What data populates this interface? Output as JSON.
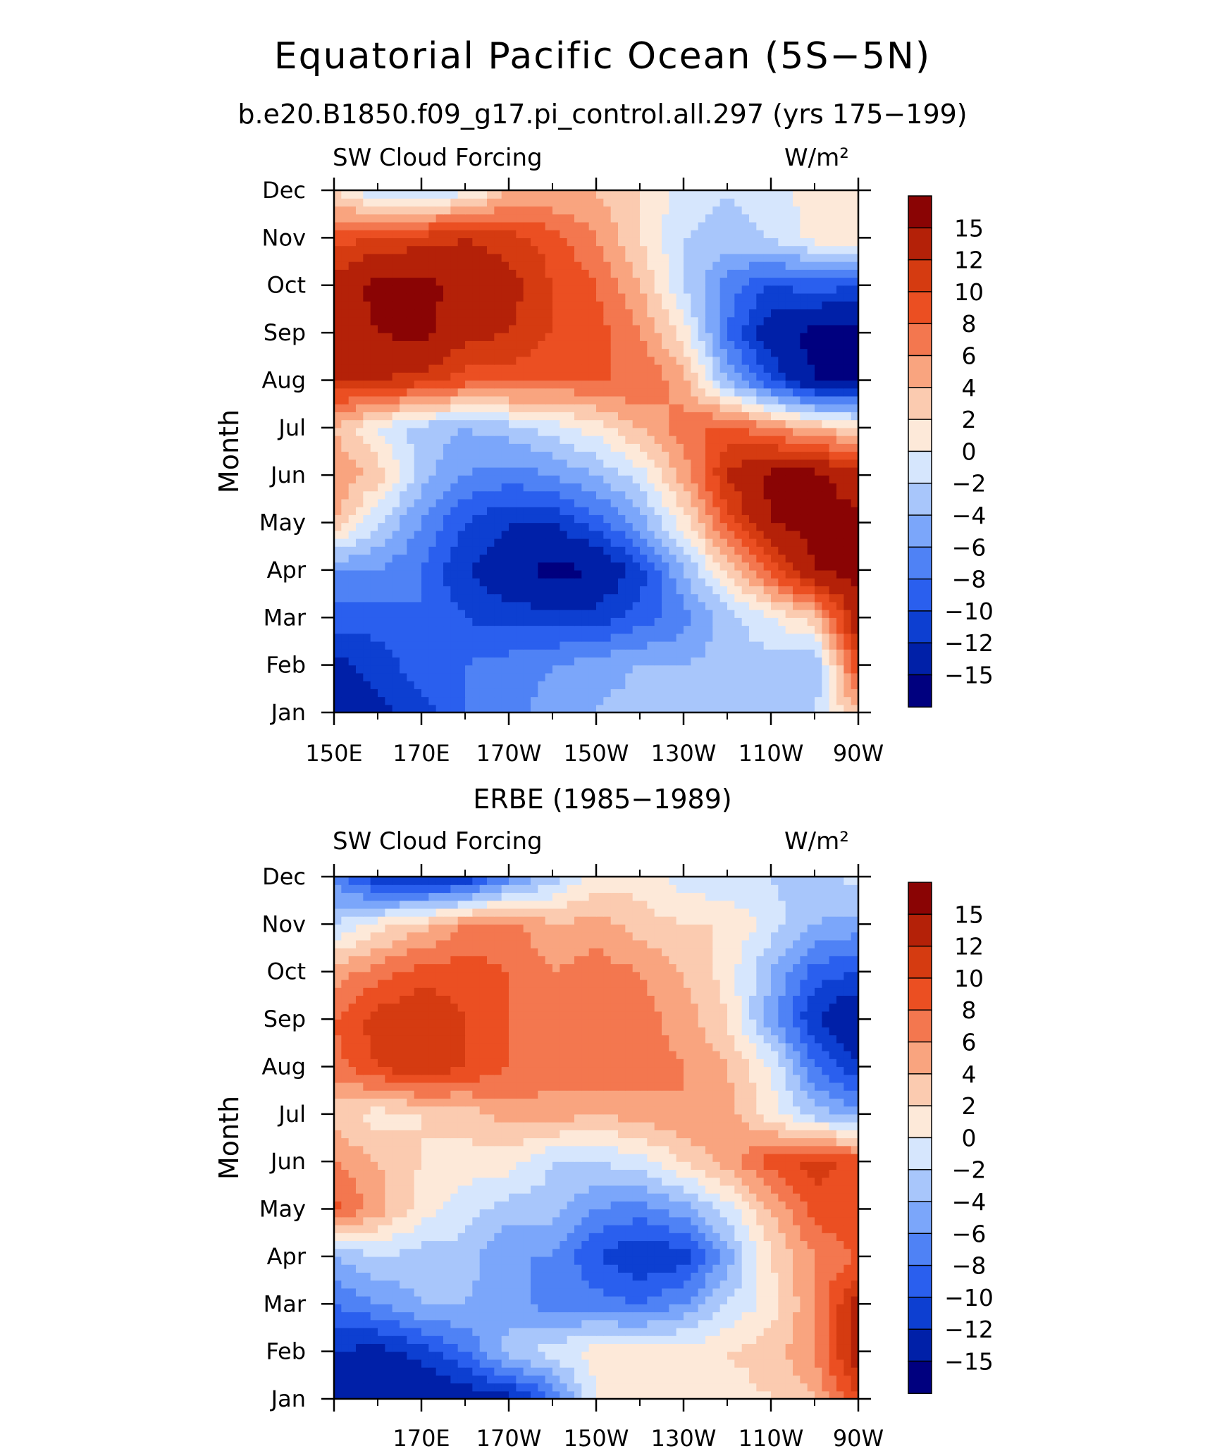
{
  "title": "Equatorial Pacific Ocean (5S−5N)",
  "case_title": "b.e20.B1850.f09_g17.pi_control.all.297 (yrs 175−199)",
  "obs_title": "ERBE (1985−1989)",
  "colors": [
    "#00007f",
    "#0020a8",
    "#0d3fd1",
    "#2a5fee",
    "#4f82f5",
    "#7ba6fa",
    "#a8c6fb",
    "#d6e6fd",
    "#fde9d9",
    "#fbcbb0",
    "#f9a47f",
    "#f3774f",
    "#eb4f22",
    "#d53b11",
    "#b42108",
    "#8a0404"
  ],
  "colorbar_labels": [
    "15",
    "12",
    "10",
    "8",
    "6",
    "4",
    "2",
    "0",
    "−2",
    "−4",
    "−6",
    "−8",
    "−10",
    "−12",
    "−15"
  ],
  "chart_data": [
    {
      "type": "heatmap",
      "left_label": "SW Cloud Forcing",
      "right_label": "W/m²",
      "ylabel": "Month",
      "x_ticks": [
        "150E",
        "170E",
        "170W",
        "150W",
        "130W",
        "110W",
        "90W"
      ],
      "y_ticks": [
        "Jan",
        "Feb",
        "Mar",
        "Apr",
        "May",
        "Jun",
        "Jul",
        "Aug",
        "Sep",
        "Oct",
        "Nov",
        "Dec"
      ],
      "x_range": [
        "150E",
        "90W"
      ],
      "levels": [
        -15,
        -12,
        -10,
        -8,
        -6,
        -4,
        -2,
        0,
        2,
        4,
        6,
        8,
        10,
        12,
        15
      ],
      "grid_cols": [
        "150E",
        "160E",
        "170E",
        "180",
        "170W",
        "160W",
        "150W",
        "140W",
        "130W",
        "120W",
        "110W",
        "100W",
        "90W"
      ],
      "values": [
        [
          -15,
          -13,
          -11,
          -8,
          -7,
          -5,
          -4,
          -3,
          -3,
          -2,
          -3,
          -2,
          4
        ],
        [
          -13,
          -11,
          -9,
          -8,
          -7,
          -6,
          -5,
          -4,
          -4,
          -3,
          -3,
          -4,
          10
        ],
        [
          -9,
          -9,
          -8,
          -10,
          -11,
          -11,
          -11,
          -9,
          -7,
          -3,
          0,
          3,
          14
        ],
        [
          -6,
          -6,
          -8,
          -12,
          -14,
          -16,
          -15,
          -11,
          -4,
          2,
          9,
          15,
          16
        ],
        [
          4,
          -2,
          -6,
          -10,
          -12,
          -12,
          -9,
          -5,
          1,
          9,
          15,
          16,
          16
        ],
        [
          6,
          3,
          -3,
          -6,
          -7,
          -6,
          -4,
          -1,
          5,
          12,
          16,
          16,
          13
        ],
        [
          4,
          0,
          -3,
          -4,
          -3,
          -1,
          1,
          4,
          7,
          9,
          6,
          4,
          2
        ],
        [
          12,
          12,
          11,
          9,
          9,
          8,
          8,
          8,
          5,
          -4,
          -10,
          -15,
          -15
        ],
        [
          13,
          15,
          16,
          13,
          12,
          10,
          9,
          6,
          1,
          -8,
          -14,
          -16,
          -16
        ],
        [
          13,
          16,
          16,
          14,
          13,
          10,
          8,
          4,
          -2,
          -7,
          -10,
          -9,
          -10
        ],
        [
          9,
          10,
          11,
          12,
          11,
          9,
          6,
          2,
          -2,
          -3,
          -2,
          1,
          1
        ],
        [
          2,
          -2,
          -2,
          -1,
          4,
          4,
          4,
          2,
          -1,
          -2,
          -1,
          1,
          0
        ]
      ]
    },
    {
      "type": "heatmap",
      "left_label": "SW Cloud Forcing",
      "right_label": "W/m²",
      "ylabel": "Month",
      "x_ticks": [
        "170E",
        "170W",
        "150W",
        "130W",
        "110W",
        "90W"
      ],
      "y_ticks": [
        "Jan",
        "Feb",
        "Mar",
        "Apr",
        "May",
        "Jun",
        "Jul",
        "Aug",
        "Sep",
        "Oct",
        "Nov",
        "Dec"
      ],
      "x_range": [
        "150E",
        "90W"
      ],
      "levels": [
        -15,
        -12,
        -10,
        -8,
        -6,
        -4,
        -2,
        0,
        2,
        4,
        6,
        8,
        10,
        12,
        15
      ],
      "grid_cols": [
        "150E",
        "160E",
        "170E",
        "180",
        "170W",
        "160W",
        "150W",
        "140W",
        "130W",
        "120W",
        "110W",
        "100W",
        "90W"
      ],
      "values": [
        [
          -12,
          -14,
          -15,
          -14,
          -13,
          -8,
          0,
          1,
          0,
          1,
          2,
          4,
          10
        ],
        [
          -12,
          -13,
          -11,
          -8,
          -3,
          -1,
          1,
          1,
          1,
          2,
          3,
          6,
          14
        ],
        [
          -8,
          -6,
          -4,
          -4,
          -5,
          -7,
          -7,
          -8,
          -6,
          -2,
          1,
          6,
          13
        ],
        [
          -4,
          -2,
          -3,
          -3,
          -6,
          -6,
          -10,
          -12,
          -11,
          -5,
          2,
          6,
          8
        ],
        [
          9,
          5,
          1,
          -1,
          -3,
          -3,
          -6,
          -7,
          -5,
          -1,
          4,
          9,
          10
        ],
        [
          6,
          4,
          2,
          1,
          1,
          -2,
          -2,
          -1,
          2,
          5,
          9,
          11,
          9
        ],
        [
          3,
          1,
          2,
          3,
          5,
          5,
          4,
          5,
          6,
          5,
          1,
          -3,
          -5
        ],
        [
          7,
          10,
          12,
          10,
          8,
          7,
          8,
          7,
          6,
          4,
          0,
          -8,
          -12
        ],
        [
          8,
          11,
          12,
          10,
          8,
          6,
          8,
          7,
          5,
          2,
          -5,
          -12,
          -15
        ],
        [
          5,
          7,
          9,
          9,
          8,
          6,
          7,
          6,
          4,
          1,
          -4,
          -9,
          -10
        ],
        [
          -2,
          1,
          3,
          6,
          7,
          4,
          5,
          3,
          2,
          2,
          -1,
          -4,
          -5
        ],
        [
          -7,
          -12,
          -13,
          -12,
          -7,
          -3,
          1,
          1,
          -1,
          -2,
          -2,
          -3,
          -1
        ]
      ]
    }
  ]
}
